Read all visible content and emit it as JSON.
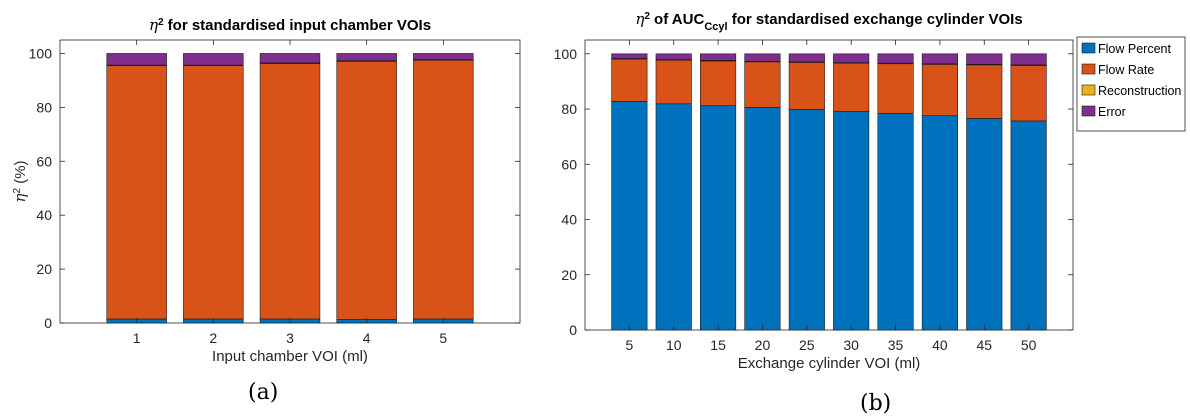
{
  "colors": {
    "flow_percent": "#0072bd",
    "flow_rate": "#d95319",
    "reconstruction": "#edb120",
    "error": "#7e2f8e"
  },
  "chart_data": [
    {
      "type": "bar",
      "stacked": true,
      "title_prefix": "η",
      "title_sup": "2",
      "title_main": " for standardised input chamber VOIs",
      "title_sub": "",
      "title_post": "",
      "xlabel": "Input chamber VOI (ml)",
      "ylabel_prefix": "η",
      "ylabel_sup": "2",
      "ylabel_suffix": " (%)",
      "ylim": [
        0,
        105
      ],
      "yticks": [
        0,
        20,
        40,
        60,
        80,
        100
      ],
      "categories": [
        "1",
        "2",
        "3",
        "4",
        "5"
      ],
      "legend": "none",
      "series": [
        {
          "name": "Flow Percent",
          "values": [
            1.5,
            1.5,
            1.5,
            1.3,
            1.5
          ]
        },
        {
          "name": "Flow Rate",
          "values": [
            94.0,
            94.0,
            94.8,
            95.8,
            96.0
          ]
        },
        {
          "name": "Reconstruction",
          "values": [
            0.2,
            0.2,
            0.2,
            0.2,
            0.2
          ]
        },
        {
          "name": "Error",
          "values": [
            4.3,
            4.3,
            3.5,
            2.7,
            2.3
          ]
        }
      ],
      "caption": "(a)"
    },
    {
      "type": "bar",
      "stacked": true,
      "title_prefix": "η",
      "title_sup": "2",
      "title_main": " of AUC",
      "title_sub": "Ccyl",
      "title_post": " for standardised exchange cylinder VOIs",
      "xlabel": "Exchange cylinder VOI (ml)",
      "ylabel_prefix": "",
      "ylabel_sup": "",
      "ylabel_suffix": "",
      "ylim": [
        0,
        105
      ],
      "yticks": [
        0,
        20,
        40,
        60,
        80,
        100
      ],
      "categories": [
        "5",
        "10",
        "15",
        "20",
        "25",
        "30",
        "35",
        "40",
        "45",
        "50"
      ],
      "legend": "outside top-right",
      "series": [
        {
          "name": "Flow Percent",
          "values": [
            82.8,
            81.9,
            81.2,
            80.6,
            79.9,
            79.2,
            78.4,
            77.6,
            76.6,
            75.7
          ]
        },
        {
          "name": "Flow Rate",
          "values": [
            15.3,
            15.8,
            16.2,
            16.5,
            17.0,
            17.4,
            18.0,
            18.6,
            19.4,
            20.1
          ]
        },
        {
          "name": "Reconstruction",
          "values": [
            0.2,
            0.2,
            0.2,
            0.2,
            0.2,
            0.2,
            0.2,
            0.2,
            0.2,
            0.2
          ]
        },
        {
          "name": "Error",
          "values": [
            1.7,
            2.1,
            2.4,
            2.7,
            2.9,
            3.2,
            3.4,
            3.6,
            3.8,
            4.0
          ]
        }
      ],
      "caption": "(b)"
    }
  ]
}
